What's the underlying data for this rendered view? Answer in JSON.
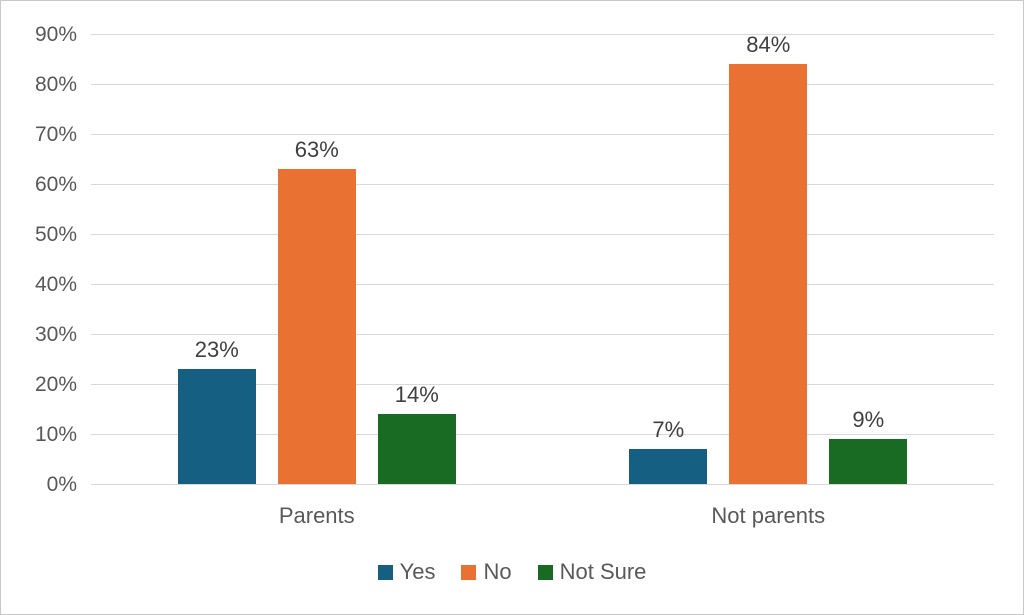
{
  "chart_data": {
    "type": "bar",
    "title": "",
    "xlabel": "",
    "ylabel": "",
    "categories": [
      "Parents",
      "Not parents"
    ],
    "series": [
      {
        "name": "Yes",
        "color": "#156082",
        "values": [
          23,
          7
        ],
        "data_labels": [
          "23%",
          "7%"
        ]
      },
      {
        "name": "No",
        "color": "#E97132",
        "values": [
          63,
          84
        ],
        "data_labels": [
          "63%",
          "84%"
        ]
      },
      {
        "name": "Not Sure",
        "color": "#196B24",
        "values": [
          14,
          9
        ],
        "data_labels": [
          "14%",
          "9%"
        ]
      }
    ],
    "y_axis": {
      "min": 0,
      "max": 90,
      "step": 10,
      "tick_labels": [
        "0%",
        "10%",
        "20%",
        "30%",
        "40%",
        "50%",
        "60%",
        "70%",
        "80%",
        "90%"
      ]
    },
    "grid": true,
    "legend_position": "bottom",
    "colors": {
      "gridline": "#d9d9d9",
      "axis_text": "#595959",
      "data_label_text": "#404040",
      "frame_border": "#c8c8c8",
      "background": "#ffffff"
    }
  }
}
